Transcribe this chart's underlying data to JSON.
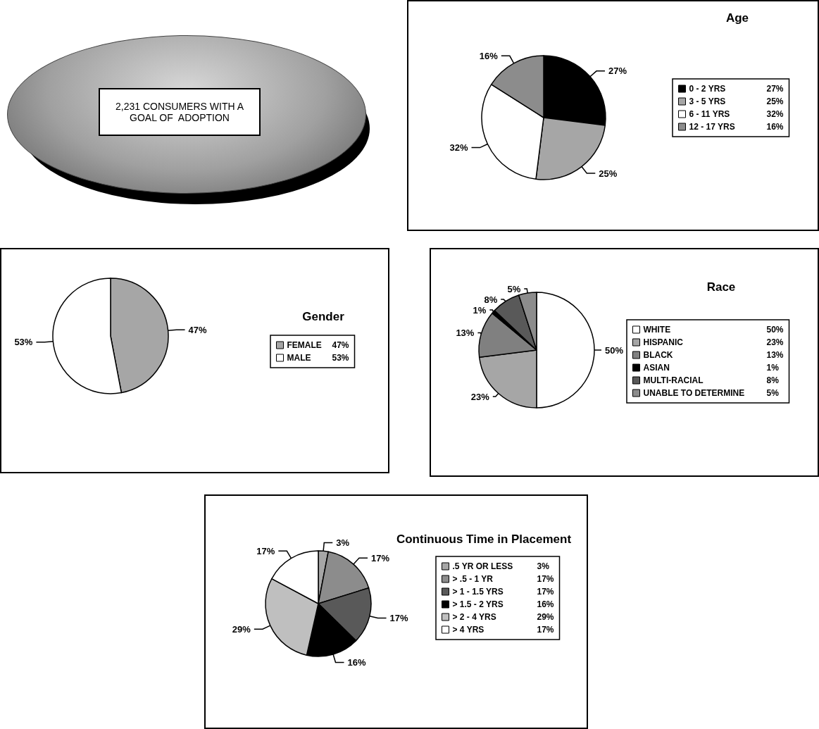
{
  "chart_data": [
    {
      "type": "other",
      "annotations": [
        "2,231 CONSUMERS WITH A GOAL OF  ADOPTION"
      ]
    },
    {
      "type": "pie",
      "title": "Age",
      "categories": [
        "0 - 2 YRS",
        "3 - 5 YRS",
        "6 - 11 YRS",
        "12 - 17 YRS"
      ],
      "values": [
        27,
        25,
        32,
        16
      ],
      "value_labels": [
        "27%",
        "25%",
        "32%",
        "16%"
      ],
      "colors": [
        "#000000",
        "#a6a6a6",
        "#ffffff",
        "#8c8c8c"
      ],
      "legend": "right"
    },
    {
      "type": "pie",
      "title": "Gender",
      "categories": [
        "FEMALE",
        "MALE"
      ],
      "values": [
        47,
        53
      ],
      "value_labels": [
        "47%",
        "53%"
      ],
      "colors": [
        "#a6a6a6",
        "#ffffff"
      ],
      "legend": "right"
    },
    {
      "type": "pie",
      "title": "Race",
      "categories": [
        "WHITE",
        "HISPANIC",
        "BLACK",
        "ASIAN",
        "MULTI-RACIAL",
        "UNABLE TO DETERMINE"
      ],
      "values": [
        50,
        23,
        13,
        1,
        8,
        5
      ],
      "value_labels": [
        "50%",
        "23%",
        "13%",
        "1%",
        "8%",
        "5%"
      ],
      "colors": [
        "#ffffff",
        "#a6a6a6",
        "#808080",
        "#000000",
        "#595959",
        "#8c8c8c"
      ],
      "legend": "right"
    },
    {
      "type": "pie",
      "title": "Continuous Time in Placement",
      "categories": [
        ".5 YR OR LESS",
        "> .5 - 1 YR",
        "> 1 - 1.5 YRS",
        "> 1.5 - 2 YRS",
        "> 2 - 4 YRS",
        "> 4 YRS"
      ],
      "values": [
        3,
        17,
        17,
        16,
        29,
        17
      ],
      "value_labels": [
        "3%",
        "17%",
        "17%",
        "16%",
        "29%",
        "17%"
      ],
      "colors": [
        "#a6a6a6",
        "#8c8c8c",
        "#595959",
        "#000000",
        "#bfbfbf",
        "#ffffff"
      ],
      "legend": "right"
    }
  ]
}
